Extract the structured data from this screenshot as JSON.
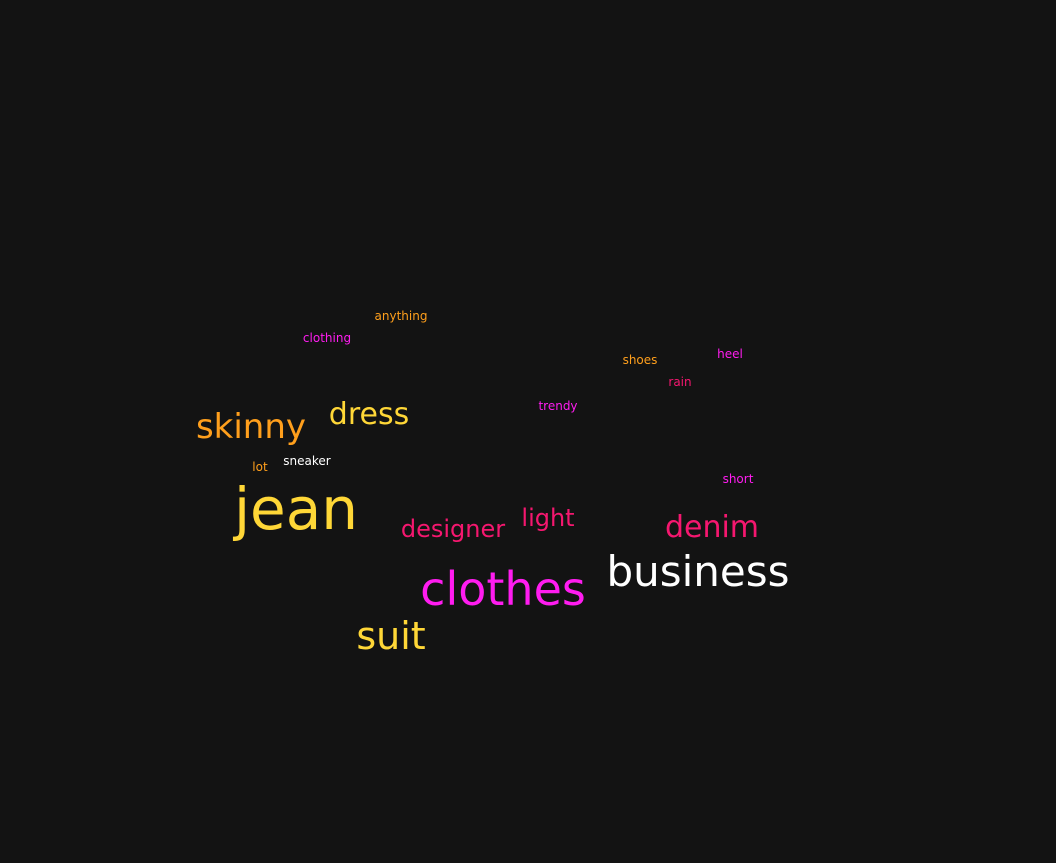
{
  "colors": {
    "background": "#131313",
    "yellow": "#FFD737",
    "orange": "#FF9F1C",
    "magenta": "#FF1CF0",
    "pink": "#F5176F",
    "white": "#FFFFFF"
  },
  "words": {
    "jean": {
      "text": "jean",
      "color": "#FFD737"
    },
    "clothes": {
      "text": "clothes",
      "color": "#FF1CF0"
    },
    "business": {
      "text": "business",
      "color": "#FFFFFF"
    },
    "suit": {
      "text": "suit",
      "color": "#FFD737"
    },
    "skinny": {
      "text": "skinny",
      "color": "#FF9F1C"
    },
    "dress": {
      "text": "dress",
      "color": "#FFD737"
    },
    "denim": {
      "text": "denim",
      "color": "#F5176F"
    },
    "designer": {
      "text": "designer",
      "color": "#F5176F"
    },
    "light": {
      "text": "light",
      "color": "#F5176F"
    },
    "anything": {
      "text": "anything",
      "color": "#FF9F1C"
    },
    "clothing": {
      "text": "clothing",
      "color": "#FF1CF0"
    },
    "shoes": {
      "text": "shoes",
      "color": "#FF9F1C"
    },
    "heel": {
      "text": "heel",
      "color": "#FF1CF0"
    },
    "rain": {
      "text": "rain",
      "color": "#F5176F"
    },
    "trendy": {
      "text": "trendy",
      "color": "#FF1CF0"
    },
    "sneaker": {
      "text": "sneaker",
      "color": "#FFFFFF"
    },
    "lot": {
      "text": "lot",
      "color": "#FF9F1C"
    },
    "short": {
      "text": "short",
      "color": "#FF1CF0"
    }
  }
}
